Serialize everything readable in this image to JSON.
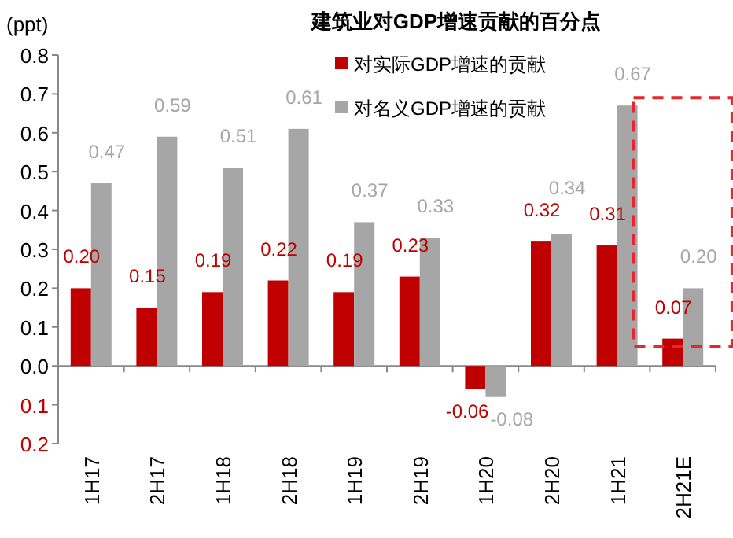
{
  "chart_data": {
    "type": "bar",
    "title": "建筑业对GDP增速贡献的百分点",
    "ylabel": "(ppt)",
    "categories": [
      "1H17",
      "2H17",
      "1H18",
      "2H18",
      "1H19",
      "2H19",
      "1H20",
      "2H20",
      "1H21",
      "2H21E"
    ],
    "series": [
      {
        "name": "对实际GDP增速的贡献",
        "color": "#c00000",
        "values": [
          0.2,
          0.15,
          0.19,
          0.22,
          0.19,
          0.23,
          -0.06,
          0.32,
          0.31,
          0.07
        ],
        "value_labels": [
          "0.20",
          "0.15",
          "0.19",
          "0.22",
          "0.19",
          "0.23",
          "-0.06",
          "0.32",
          "0.31",
          "0.07"
        ]
      },
      {
        "name": "对名义GDP增速的贡献",
        "color": "#a6a6a6",
        "values": [
          0.47,
          0.59,
          0.51,
          0.61,
          0.37,
          0.33,
          -0.08,
          0.34,
          0.67,
          0.2
        ],
        "value_labels": [
          "0.47",
          "0.59",
          "0.51",
          "0.61",
          "0.37",
          "0.33",
          "-0.08",
          "0.34",
          "0.67",
          "0.20"
        ]
      }
    ],
    "ylim": [
      -0.2,
      0.8
    ],
    "yticks": [
      {
        "value": -0.2,
        "label": "0.2"
      },
      {
        "value": -0.1,
        "label": "0.1"
      },
      {
        "value": 0,
        "label": "0.0"
      },
      0.1,
      0.2,
      0.3,
      0.4,
      0.5,
      0.6,
      0.7,
      0.8
    ],
    "legend": "top"
  }
}
